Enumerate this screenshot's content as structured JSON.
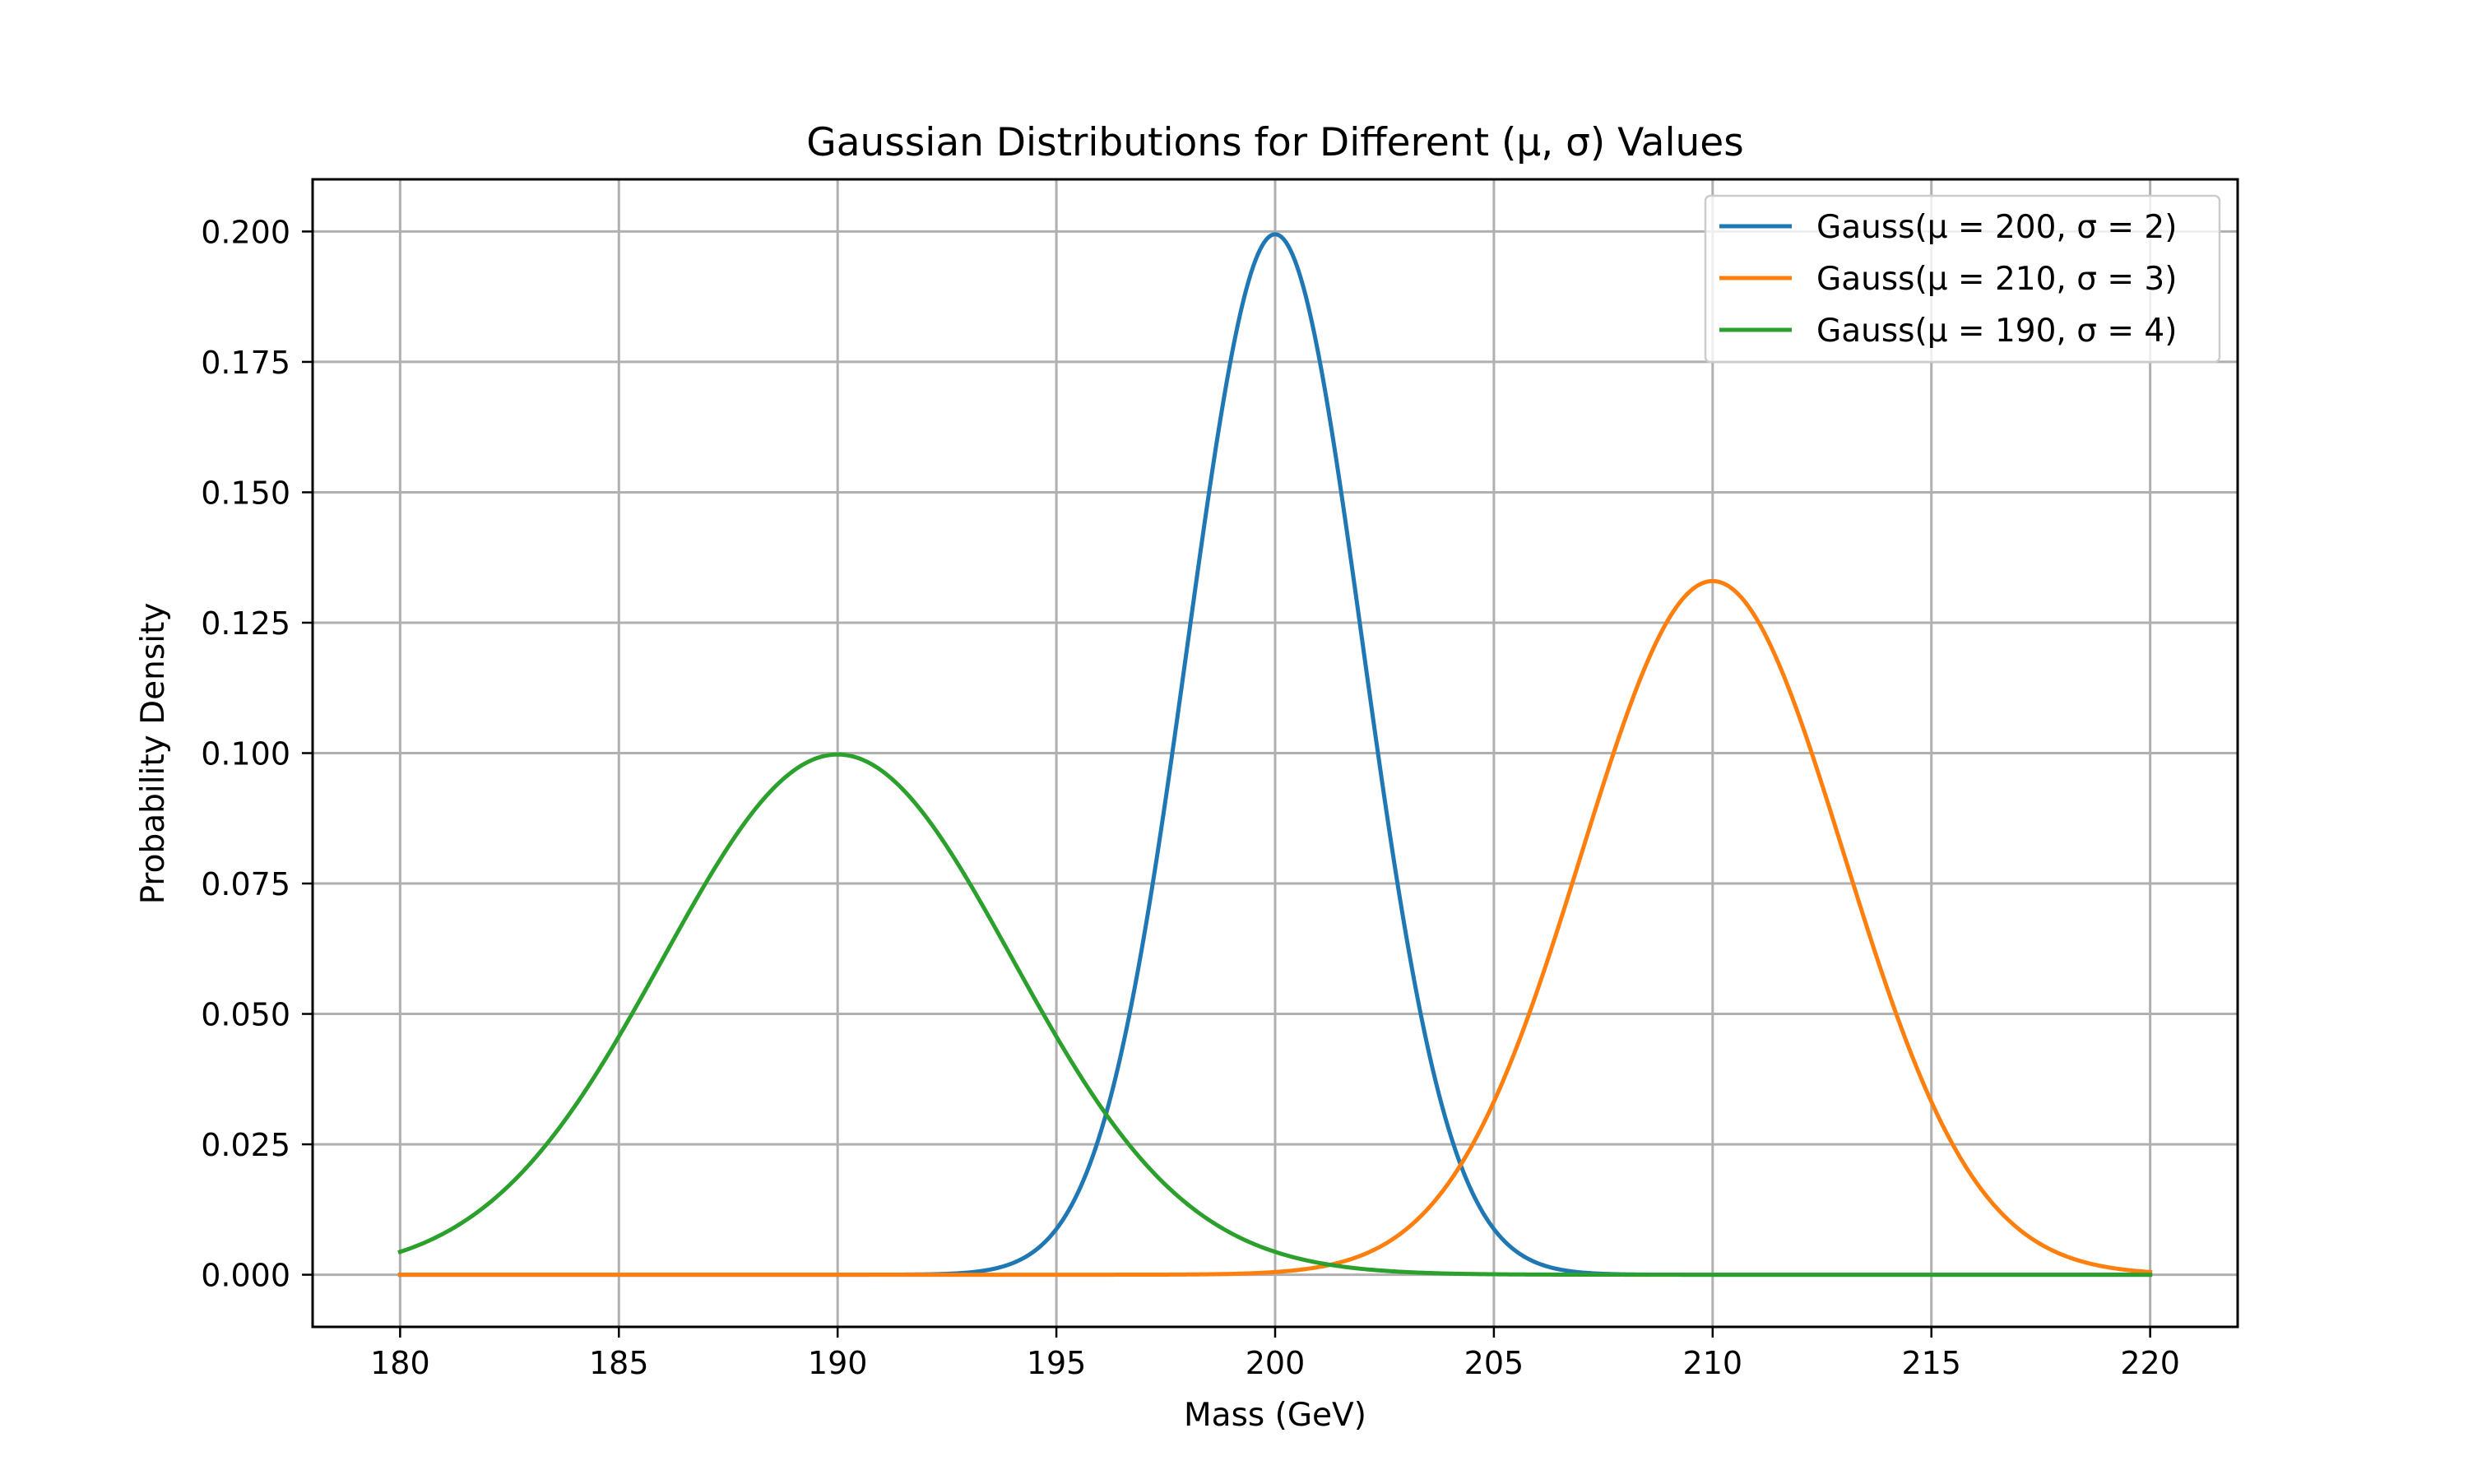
{
  "chart_data": {
    "type": "line",
    "title": "Gaussian Distributions for Different (μ, σ) Values",
    "xlabel": "Mass (GeV)",
    "ylabel": "Probability Density",
    "xlim": [
      178,
      222
    ],
    "ylim": [
      -0.01,
      0.21
    ],
    "x_ticks": [
      180,
      185,
      190,
      195,
      200,
      205,
      210,
      215,
      220
    ],
    "x_tick_labels": [
      "180",
      "185",
      "190",
      "195",
      "200",
      "205",
      "210",
      "215",
      "220"
    ],
    "y_ticks": [
      0,
      0.025,
      0.05,
      0.075,
      0.1,
      0.125,
      0.15,
      0.175,
      0.2
    ],
    "y_tick_labels": [
      "0.000",
      "0.025",
      "0.050",
      "0.075",
      "0.100",
      "0.125",
      "0.150",
      "0.175",
      "0.200"
    ],
    "x_range": [
      180,
      220
    ],
    "grid": true,
    "legend_position": "top-right",
    "series": [
      {
        "name": "Gauss(μ = 200, σ = 2)",
        "mu": 200,
        "sigma": 2,
        "color": "#1f77b4"
      },
      {
        "name": "Gauss(μ = 210, σ = 3)",
        "mu": 210,
        "sigma": 3,
        "color": "#ff7f0e"
      },
      {
        "name": "Gauss(μ = 190, σ = 4)",
        "mu": 190,
        "sigma": 4,
        "color": "#2ca02c"
      }
    ]
  }
}
